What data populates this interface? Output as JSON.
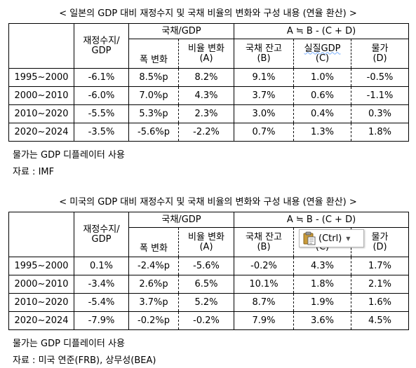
{
  "table1": {
    "caption": "< 일본의 GDP 대비 재정수지 및 국채 비율의 변화와 구성 내용 (연율 환산) >",
    "h_fiscal": "재정수지/ GDP",
    "h_debt_group": "국채/GDP",
    "h_formula": "A ≒ B - (C + D)",
    "h_width": "폭 변화",
    "h_ratio": "비율 변화",
    "h_ratio_sub": "(A)",
    "h_stock": "국채 잔고",
    "h_stock_sub": "(B)",
    "h_realgdp": "실질GDP",
    "h_realgdp_sub": "(C)",
    "h_price": "물가",
    "h_price_sub": "(D)",
    "rows": [
      {
        "period": "1995~2000",
        "fiscal": "-6.1%",
        "width": "8.5%p",
        "ratio": "8.2%",
        "stock": "9.1%",
        "real": "1.0%",
        "price": "-0.5%"
      },
      {
        "period": "2000~2010",
        "fiscal": "-6.0%",
        "width": "7.0%p",
        "ratio": "4.3%",
        "stock": "3.7%",
        "real": "0.6%",
        "price": "-1.1%"
      },
      {
        "period": "2010~2020",
        "fiscal": "-5.5%",
        "width": "5.3%p",
        "ratio": "2.3%",
        "stock": "3.0%",
        "real": "0.4%",
        "price": "0.3%"
      },
      {
        "period": "2020~2024",
        "fiscal": "-3.5%",
        "width": "-5.6%p",
        "ratio": "-2.2%",
        "stock": "0.7%",
        "real": "1.3%",
        "price": "1.8%"
      }
    ],
    "note1": "물가는 GDP 디플레이터 사용",
    "note2": "자료 : IMF"
  },
  "table2": {
    "caption": "< 미국의 GDP 대비 재정수지 및 국채 비율의 변화와 구성 내용 (연율 환산) >",
    "h_fiscal": "재정수지/ GDP",
    "h_debt_group": "국채/GDP",
    "h_formula": "A ≒ B - (C + D)",
    "h_width": "폭 변화",
    "h_ratio": "비율 변화",
    "h_ratio_sub": "(A)",
    "h_stock": "국채 잔고",
    "h_stock_sub": "(B)",
    "h_realgdp_sub": "(C)",
    "h_price": "물가",
    "h_price_sub": "(D)",
    "rows": [
      {
        "period": "1995~2000",
        "fiscal": "0.1%",
        "width": "-2.4%p",
        "ratio": "-5.6%",
        "stock": "-0.2%",
        "real": "4.3%",
        "price": "1.7%"
      },
      {
        "period": "2000~2010",
        "fiscal": "-3.4%",
        "width": "2.6%p",
        "ratio": "6.5%",
        "stock": "10.1%",
        "real": "1.8%",
        "price": "2.1%"
      },
      {
        "period": "2010~2020",
        "fiscal": "-5.4%",
        "width": "3.7%p",
        "ratio": "5.2%",
        "stock": "8.7%",
        "real": "1.9%",
        "price": "1.6%"
      },
      {
        "period": "2020~2024",
        "fiscal": "-7.9%",
        "width": "-0.2%p",
        "ratio": "-0.2%",
        "stock": "7.9%",
        "real": "3.6%",
        "price": "4.5%"
      }
    ],
    "note1": "물가는 GDP 디플레이터 사용",
    "note2": "자료 : 미국 연준(FRB), 상무성(BEA)"
  },
  "paste_popup": {
    "label": "(Ctrl)",
    "icon": "clipboard-icon"
  }
}
